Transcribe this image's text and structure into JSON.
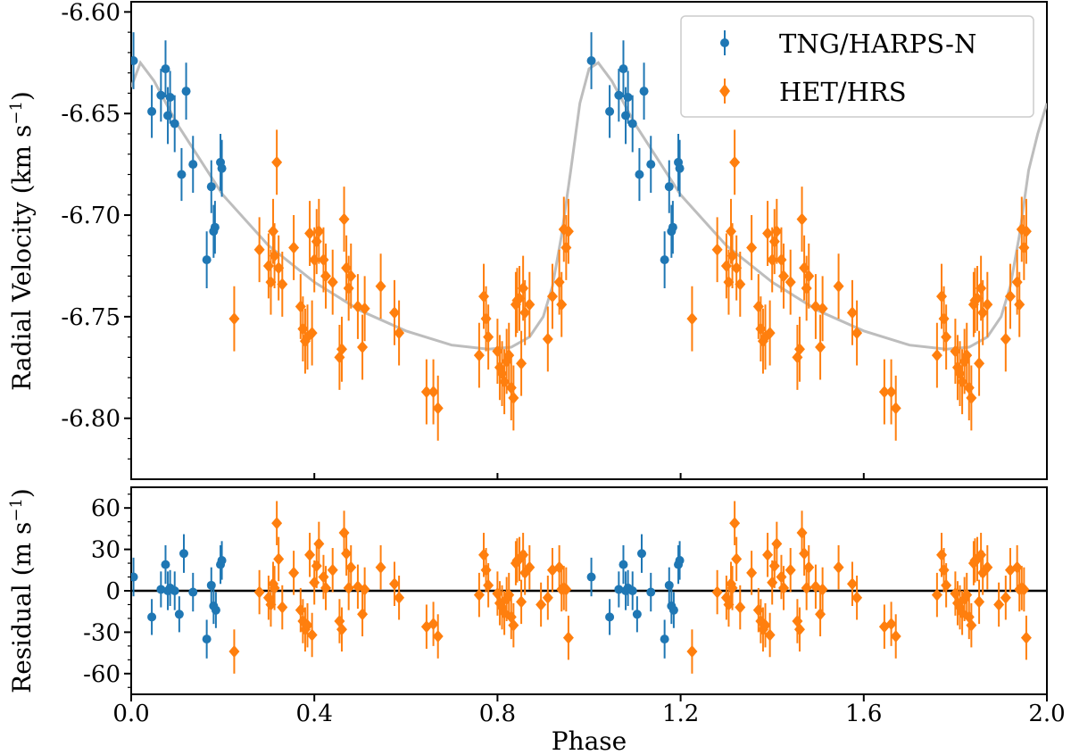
{
  "chart_data": {
    "type": "scatter",
    "x_range": [
      0.0,
      2.0
    ],
    "xlabel": "Phase",
    "x_ticks": [
      "0.0",
      "0.4",
      "0.8",
      "1.2",
      "1.6",
      "2.0"
    ],
    "x_tick_values": [
      0.0,
      0.4,
      0.8,
      1.2,
      1.6,
      2.0
    ],
    "colors": {
      "tng": "#1f77b4",
      "het": "#ff7f0e",
      "model": "#bdbdbd",
      "zero_line": "#000000"
    },
    "legend": {
      "position": "top-right",
      "entries": [
        "TNG/HARPS-N",
        "HET/HRS"
      ]
    },
    "top_panel": {
      "ylabel_main": "Radial Velocity (km s",
      "ylabel_sup": "−1",
      "ylabel_close": ")",
      "ylim": [
        -6.83,
        -6.595
      ],
      "y_ticks": [
        "-6.60",
        "-6.65",
        "-6.70",
        "-6.75",
        "-6.80"
      ],
      "y_tick_values": [
        -6.6,
        -6.65,
        -6.7,
        -6.75,
        -6.8
      ],
      "model_curve": {
        "x": [
          0.0,
          0.02,
          0.05,
          0.1,
          0.2,
          0.3,
          0.4,
          0.5,
          0.6,
          0.7,
          0.78,
          0.83,
          0.87,
          0.9,
          0.92,
          0.94,
          0.96,
          0.98,
          1.0,
          1.02,
          1.05,
          1.1,
          1.2,
          1.3,
          1.4,
          1.5,
          1.6,
          1.7,
          1.78,
          1.83,
          1.87,
          1.9,
          1.92,
          1.94,
          1.96,
          1.98,
          2.0
        ],
        "y": [
          -6.637,
          -6.625,
          -6.634,
          -6.655,
          -6.69,
          -6.715,
          -6.733,
          -6.747,
          -6.757,
          -6.764,
          -6.766,
          -6.765,
          -6.76,
          -6.75,
          -6.735,
          -6.71,
          -6.678,
          -6.645,
          -6.628,
          -6.625,
          -6.634,
          -6.655,
          -6.69,
          -6.715,
          -6.733,
          -6.747,
          -6.757,
          -6.764,
          -6.766,
          -6.765,
          -6.76,
          -6.75,
          -6.735,
          -6.71,
          -6.678,
          -6.66,
          -6.645
        ]
      },
      "series": [
        {
          "name": "TNG/HARPS-N",
          "marker": "circle",
          "points": [
            {
              "x": 0.005,
              "y": -6.624,
              "err": 0.014
            },
            {
              "x": 0.045,
              "y": -6.649,
              "err": 0.013
            },
            {
              "x": 0.065,
              "y": -6.641,
              "err": 0.013
            },
            {
              "x": 0.075,
              "y": -6.628,
              "err": 0.014
            },
            {
              "x": 0.08,
              "y": -6.651,
              "err": 0.014
            },
            {
              "x": 0.085,
              "y": -6.642,
              "err": 0.013
            },
            {
              "x": 0.095,
              "y": -6.655,
              "err": 0.014
            },
            {
              "x": 0.11,
              "y": -6.68,
              "err": 0.013
            },
            {
              "x": 0.12,
              "y": -6.639,
              "err": 0.014
            },
            {
              "x": 0.135,
              "y": -6.675,
              "err": 0.014
            },
            {
              "x": 0.165,
              "y": -6.722,
              "err": 0.014
            },
            {
              "x": 0.175,
              "y": -6.686,
              "err": 0.013
            },
            {
              "x": 0.18,
              "y": -6.708,
              "err": 0.013
            },
            {
              "x": 0.183,
              "y": -6.706,
              "err": 0.013
            },
            {
              "x": 0.195,
              "y": -6.674,
              "err": 0.014
            },
            {
              "x": 0.198,
              "y": -6.677,
              "err": 0.014
            }
          ]
        },
        {
          "name": "HET/HRS",
          "marker": "diamond",
          "points": [
            {
              "x": 0.225,
              "y": -6.751,
              "err": 0.016
            },
            {
              "x": 0.28,
              "y": -6.717,
              "err": 0.016
            },
            {
              "x": 0.3,
              "y": -6.725,
              "err": 0.016
            },
            {
              "x": 0.305,
              "y": -6.733,
              "err": 0.016
            },
            {
              "x": 0.31,
              "y": -6.708,
              "err": 0.016
            },
            {
              "x": 0.313,
              "y": -6.72,
              "err": 0.016
            },
            {
              "x": 0.318,
              "y": -6.674,
              "err": 0.016
            },
            {
              "x": 0.322,
              "y": -6.726,
              "err": 0.016
            },
            {
              "x": 0.33,
              "y": -6.734,
              "err": 0.016
            },
            {
              "x": 0.355,
              "y": -6.716,
              "err": 0.016
            },
            {
              "x": 0.37,
              "y": -6.745,
              "err": 0.016
            },
            {
              "x": 0.375,
              "y": -6.756,
              "err": 0.016
            },
            {
              "x": 0.38,
              "y": -6.762,
              "err": 0.016
            },
            {
              "x": 0.385,
              "y": -6.76,
              "err": 0.016
            },
            {
              "x": 0.39,
              "y": -6.709,
              "err": 0.016
            },
            {
              "x": 0.395,
              "y": -6.758,
              "err": 0.016
            },
            {
              "x": 0.4,
              "y": -6.722,
              "err": 0.016
            },
            {
              "x": 0.405,
              "y": -6.713,
              "err": 0.016
            },
            {
              "x": 0.41,
              "y": -6.708,
              "err": 0.016
            },
            {
              "x": 0.42,
              "y": -6.722,
              "err": 0.016
            },
            {
              "x": 0.425,
              "y": -6.73,
              "err": 0.016
            },
            {
              "x": 0.44,
              "y": -6.733,
              "err": 0.016
            },
            {
              "x": 0.455,
              "y": -6.77,
              "err": 0.016
            },
            {
              "x": 0.46,
              "y": -6.766,
              "err": 0.016
            },
            {
              "x": 0.465,
              "y": -6.702,
              "err": 0.016
            },
            {
              "x": 0.47,
              "y": -6.726,
              "err": 0.016
            },
            {
              "x": 0.475,
              "y": -6.736,
              "err": 0.016
            },
            {
              "x": 0.48,
              "y": -6.73,
              "err": 0.016
            },
            {
              "x": 0.495,
              "y": -6.745,
              "err": 0.016
            },
            {
              "x": 0.505,
              "y": -6.765,
              "err": 0.016
            },
            {
              "x": 0.51,
              "y": -6.746,
              "err": 0.016
            },
            {
              "x": 0.545,
              "y": -6.735,
              "err": 0.016
            },
            {
              "x": 0.575,
              "y": -6.748,
              "err": 0.016
            },
            {
              "x": 0.585,
              "y": -6.758,
              "err": 0.016
            },
            {
              "x": 0.645,
              "y": -6.787,
              "err": 0.016
            },
            {
              "x": 0.66,
              "y": -6.787,
              "err": 0.016
            },
            {
              "x": 0.67,
              "y": -6.795,
              "err": 0.016
            },
            {
              "x": 0.76,
              "y": -6.769,
              "err": 0.016
            },
            {
              "x": 0.77,
              "y": -6.74,
              "err": 0.016
            },
            {
              "x": 0.775,
              "y": -6.751,
              "err": 0.016
            },
            {
              "x": 0.78,
              "y": -6.76,
              "err": 0.016
            },
            {
              "x": 0.8,
              "y": -6.767,
              "err": 0.016
            },
            {
              "x": 0.805,
              "y": -6.775,
              "err": 0.016
            },
            {
              "x": 0.81,
              "y": -6.778,
              "err": 0.016
            },
            {
              "x": 0.815,
              "y": -6.782,
              "err": 0.016
            },
            {
              "x": 0.82,
              "y": -6.772,
              "err": 0.016
            },
            {
              "x": 0.825,
              "y": -6.769,
              "err": 0.016
            },
            {
              "x": 0.83,
              "y": -6.785,
              "err": 0.016
            },
            {
              "x": 0.835,
              "y": -6.79,
              "err": 0.016
            },
            {
              "x": 0.84,
              "y": -6.744,
              "err": 0.016
            },
            {
              "x": 0.843,
              "y": -6.742,
              "err": 0.016
            },
            {
              "x": 0.848,
              "y": -6.741,
              "err": 0.016
            },
            {
              "x": 0.852,
              "y": -6.773,
              "err": 0.016
            },
            {
              "x": 0.856,
              "y": -6.736,
              "err": 0.016
            },
            {
              "x": 0.86,
              "y": -6.748,
              "err": 0.016
            },
            {
              "x": 0.87,
              "y": -6.744,
              "err": 0.016
            },
            {
              "x": 0.91,
              "y": -6.761,
              "err": 0.016
            },
            {
              "x": 0.92,
              "y": -6.74,
              "err": 0.016
            },
            {
              "x": 0.935,
              "y": -6.733,
              "err": 0.016
            },
            {
              "x": 0.94,
              "y": -6.744,
              "err": 0.016
            },
            {
              "x": 0.945,
              "y": -6.707,
              "err": 0.016
            },
            {
              "x": 0.95,
              "y": -6.716,
              "err": 0.016
            },
            {
              "x": 0.955,
              "y": -6.708,
              "err": 0.016
            }
          ]
        }
      ]
    },
    "bottom_panel": {
      "ylabel_main": "Residual (m s",
      "ylabel_sup": "−1",
      "ylabel_close": ")",
      "ylim": [
        -75,
        75
      ],
      "y_ticks": [
        "60",
        "30",
        "0",
        "-30",
        "-60"
      ],
      "y_tick_values": [
        60,
        30,
        0,
        -30,
        -60
      ],
      "series": [
        {
          "name": "TNG/HARPS-N",
          "marker": "circle",
          "points": [
            {
              "x": 0.005,
              "y": 10,
              "err": 14
            },
            {
              "x": 0.045,
              "y": -19,
              "err": 13
            },
            {
              "x": 0.065,
              "y": 1,
              "err": 13
            },
            {
              "x": 0.075,
              "y": 19,
              "err": 14
            },
            {
              "x": 0.08,
              "y": 0,
              "err": 14
            },
            {
              "x": 0.085,
              "y": 2,
              "err": 13
            },
            {
              "x": 0.095,
              "y": 0,
              "err": 14
            },
            {
              "x": 0.105,
              "y": -17,
              "err": 13
            },
            {
              "x": 0.115,
              "y": 27,
              "err": 14
            },
            {
              "x": 0.135,
              "y": -1,
              "err": 14
            },
            {
              "x": 0.165,
              "y": -35,
              "err": 14
            },
            {
              "x": 0.175,
              "y": 4,
              "err": 13
            },
            {
              "x": 0.18,
              "y": -11,
              "err": 13
            },
            {
              "x": 0.185,
              "y": -14,
              "err": 13
            },
            {
              "x": 0.195,
              "y": 19,
              "err": 14
            },
            {
              "x": 0.198,
              "y": 22,
              "err": 14
            }
          ]
        },
        {
          "name": "HET/HRS",
          "marker": "diamond",
          "points": [
            {
              "x": 0.225,
              "y": -44,
              "err": 16
            },
            {
              "x": 0.28,
              "y": -1,
              "err": 16
            },
            {
              "x": 0.3,
              "y": -5,
              "err": 16
            },
            {
              "x": 0.305,
              "y": -10,
              "err": 16
            },
            {
              "x": 0.31,
              "y": 5,
              "err": 16
            },
            {
              "x": 0.313,
              "y": 2,
              "err": 16
            },
            {
              "x": 0.318,
              "y": 49,
              "err": 16
            },
            {
              "x": 0.322,
              "y": 23,
              "err": 16
            },
            {
              "x": 0.33,
              "y": -12,
              "err": 16
            },
            {
              "x": 0.355,
              "y": 13,
              "err": 16
            },
            {
              "x": 0.37,
              "y": -14,
              "err": 16
            },
            {
              "x": 0.375,
              "y": -22,
              "err": 16
            },
            {
              "x": 0.38,
              "y": -28,
              "err": 16
            },
            {
              "x": 0.385,
              "y": -25,
              "err": 16
            },
            {
              "x": 0.39,
              "y": 26,
              "err": 16
            },
            {
              "x": 0.395,
              "y": -32,
              "err": 16
            },
            {
              "x": 0.4,
              "y": 6,
              "err": 16
            },
            {
              "x": 0.405,
              "y": 18,
              "err": 16
            },
            {
              "x": 0.41,
              "y": 34,
              "err": 16
            },
            {
              "x": 0.42,
              "y": 10,
              "err": 16
            },
            {
              "x": 0.425,
              "y": 2,
              "err": 16
            },
            {
              "x": 0.44,
              "y": 15,
              "err": 16
            },
            {
              "x": 0.455,
              "y": -22,
              "err": 16
            },
            {
              "x": 0.46,
              "y": -28,
              "err": 16
            },
            {
              "x": 0.465,
              "y": 42,
              "err": 16
            },
            {
              "x": 0.47,
              "y": 27,
              "err": 16
            },
            {
              "x": 0.475,
              "y": 2,
              "err": 16
            },
            {
              "x": 0.48,
              "y": 17,
              "err": 16
            },
            {
              "x": 0.495,
              "y": 3,
              "err": 16
            },
            {
              "x": 0.505,
              "y": -17,
              "err": 16
            },
            {
              "x": 0.51,
              "y": 1,
              "err": 16
            },
            {
              "x": 0.545,
              "y": 17,
              "err": 16
            },
            {
              "x": 0.575,
              "y": 5,
              "err": 16
            },
            {
              "x": 0.585,
              "y": -5,
              "err": 16
            },
            {
              "x": 0.645,
              "y": -26,
              "err": 16
            },
            {
              "x": 0.66,
              "y": -24,
              "err": 16
            },
            {
              "x": 0.67,
              "y": -33,
              "err": 16
            },
            {
              "x": 0.76,
              "y": -3,
              "err": 16
            },
            {
              "x": 0.77,
              "y": 26,
              "err": 16
            },
            {
              "x": 0.775,
              "y": 15,
              "err": 16
            },
            {
              "x": 0.78,
              "y": 4,
              "err": 16
            },
            {
              "x": 0.8,
              "y": -2,
              "err": 16
            },
            {
              "x": 0.805,
              "y": -9,
              "err": 16
            },
            {
              "x": 0.81,
              "y": -12,
              "err": 16
            },
            {
              "x": 0.815,
              "y": -16,
              "err": 16
            },
            {
              "x": 0.82,
              "y": -6,
              "err": 16
            },
            {
              "x": 0.825,
              "y": -3,
              "err": 16
            },
            {
              "x": 0.83,
              "y": -19,
              "err": 16
            },
            {
              "x": 0.835,
              "y": -25,
              "err": 16
            },
            {
              "x": 0.84,
              "y": 20,
              "err": 16
            },
            {
              "x": 0.843,
              "y": 22,
              "err": 16
            },
            {
              "x": 0.848,
              "y": 23,
              "err": 16
            },
            {
              "x": 0.852,
              "y": -8,
              "err": 16
            },
            {
              "x": 0.856,
              "y": 26,
              "err": 16
            },
            {
              "x": 0.86,
              "y": 13,
              "err": 16
            },
            {
              "x": 0.87,
              "y": 17,
              "err": 16
            },
            {
              "x": 0.895,
              "y": -10,
              "err": 16
            },
            {
              "x": 0.91,
              "y": -5,
              "err": 16
            },
            {
              "x": 0.92,
              "y": 15,
              "err": 16
            },
            {
              "x": 0.935,
              "y": 17,
              "err": 16
            },
            {
              "x": 0.94,
              "y": 1,
              "err": 16
            },
            {
              "x": 0.945,
              "y": 2,
              "err": 16
            },
            {
              "x": 0.95,
              "y": 1,
              "err": 16
            },
            {
              "x": 0.955,
              "y": -34,
              "err": 16
            }
          ]
        }
      ]
    }
  }
}
